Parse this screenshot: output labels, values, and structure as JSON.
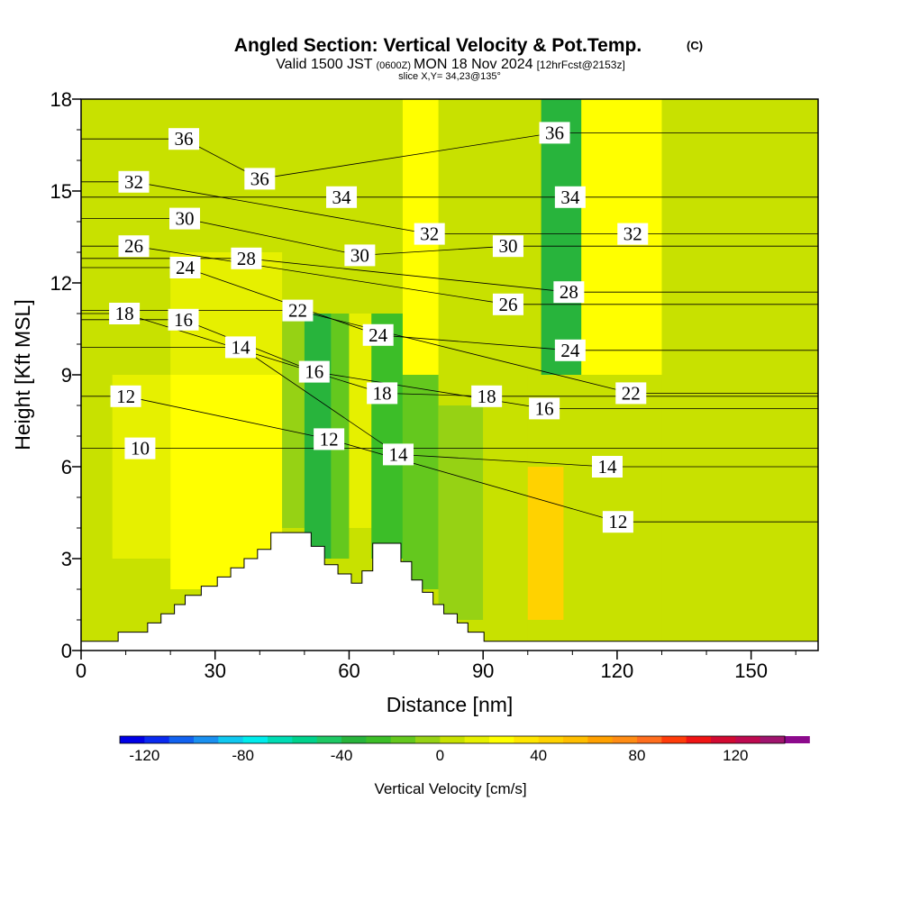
{
  "title": {
    "main": "Angled Section: Vertical Velocity & Pot.Temp.",
    "main_mark": "(C)",
    "valid_a": "Valid 1500 JST",
    "valid_b": "(0600Z)",
    "valid_c": "MON 18 Nov 2024",
    "valid_d": "[12hrFcst@2153z]",
    "slice": "slice X,Y= 34,23@135°"
  },
  "chart_data": {
    "type": "heatmap",
    "xlabel": "Distance [nm]",
    "ylabel": "Height [Kft MSL]",
    "xlim": [
      0,
      165
    ],
    "ylim": [
      0,
      18
    ],
    "xticks": [
      "0",
      "30",
      "60",
      "90",
      "120",
      "150"
    ],
    "yticks": [
      "0",
      "3",
      "6",
      "9",
      "12",
      "15",
      "18"
    ],
    "colorbar": {
      "label": "Vertical Velocity [cm/s]",
      "ticks": [
        "-120",
        "-80",
        "-40",
        "0",
        "40",
        "80",
        "120"
      ],
      "range": [
        -130,
        140
      ],
      "step": 10,
      "colors": [
        "#0000e6",
        "#0a2af0",
        "#1262f0",
        "#1a90f0",
        "#10c8f0",
        "#00ecec",
        "#00dcb4",
        "#00d28c",
        "#1ec864",
        "#28b43c",
        "#3cbe28",
        "#64c81e",
        "#96d214",
        "#c8e100",
        "#e6f000",
        "#ffff00",
        "#ffe600",
        "#ffd200",
        "#ffbe00",
        "#ffa000",
        "#ff8c14",
        "#ff6e1e",
        "#ff3c0a",
        "#f01414",
        "#d20a32",
        "#be0a50",
        "#a0146e",
        "#8c0a8c"
      ]
    },
    "terrain_profile": [
      {
        "x": 0,
        "h": 0.3
      },
      {
        "x": 8.3,
        "h": 0.3
      },
      {
        "x": 8.3,
        "h": 0.6
      },
      {
        "x": 14.9,
        "h": 0.6
      },
      {
        "x": 14.9,
        "h": 0.9
      },
      {
        "x": 17.9,
        "h": 0.9
      },
      {
        "x": 17.9,
        "h": 1.2
      },
      {
        "x": 20.9,
        "h": 1.2
      },
      {
        "x": 20.9,
        "h": 1.5
      },
      {
        "x": 23.3,
        "h": 1.5
      },
      {
        "x": 23.3,
        "h": 1.8
      },
      {
        "x": 26.9,
        "h": 1.8
      },
      {
        "x": 26.9,
        "h": 2.1
      },
      {
        "x": 30.5,
        "h": 2.1
      },
      {
        "x": 30.5,
        "h": 2.4
      },
      {
        "x": 33.5,
        "h": 2.4
      },
      {
        "x": 33.5,
        "h": 2.7
      },
      {
        "x": 36.5,
        "h": 2.7
      },
      {
        "x": 36.5,
        "h": 3.0
      },
      {
        "x": 39.5,
        "h": 3.0
      },
      {
        "x": 39.5,
        "h": 3.3
      },
      {
        "x": 42.5,
        "h": 3.3
      },
      {
        "x": 42.5,
        "h": 3.85
      },
      {
        "x": 51.5,
        "h": 3.85
      },
      {
        "x": 51.5,
        "h": 3.4
      },
      {
        "x": 54.5,
        "h": 3.4
      },
      {
        "x": 54.5,
        "h": 2.8
      },
      {
        "x": 57.5,
        "h": 2.8
      },
      {
        "x": 57.5,
        "h": 2.5
      },
      {
        "x": 60.5,
        "h": 2.5
      },
      {
        "x": 60.5,
        "h": 2.2
      },
      {
        "x": 62.9,
        "h": 2.2
      },
      {
        "x": 62.9,
        "h": 2.6
      },
      {
        "x": 65.3,
        "h": 2.6
      },
      {
        "x": 65.3,
        "h": 3.5
      },
      {
        "x": 71.6,
        "h": 3.5
      },
      {
        "x": 71.6,
        "h": 2.9
      },
      {
        "x": 74.0,
        "h": 2.9
      },
      {
        "x": 74.0,
        "h": 2.3
      },
      {
        "x": 76.4,
        "h": 2.3
      },
      {
        "x": 76.4,
        "h": 1.9
      },
      {
        "x": 78.8,
        "h": 1.9
      },
      {
        "x": 78.8,
        "h": 1.5
      },
      {
        "x": 81.2,
        "h": 1.5
      },
      {
        "x": 81.2,
        "h": 1.2
      },
      {
        "x": 84.2,
        "h": 1.2
      },
      {
        "x": 84.2,
        "h": 0.9
      },
      {
        "x": 86.6,
        "h": 0.9
      },
      {
        "x": 86.6,
        "h": 0.6
      },
      {
        "x": 90.2,
        "h": 0.6
      },
      {
        "x": 90.2,
        "h": 0.3
      },
      {
        "x": 165,
        "h": 0.3
      }
    ],
    "velocity_cells": [
      {
        "x0": 0,
        "x1": 7,
        "y0": 0,
        "y1": 18,
        "v": 5
      },
      {
        "x0": 7,
        "x1": 20,
        "y0": 3,
        "y1": 9,
        "v": 15
      },
      {
        "x0": 20,
        "x1": 45,
        "y0": 2,
        "y1": 9,
        "v": 25
      },
      {
        "x0": 20,
        "x1": 45,
        "y0": 9,
        "y1": 13,
        "v": 10
      },
      {
        "x0": 45,
        "x1": 50,
        "y0": 4,
        "y1": 11,
        "v": -5
      },
      {
        "x0": 50,
        "x1": 56,
        "y0": 3,
        "y1": 11,
        "v": -35
      },
      {
        "x0": 56,
        "x1": 60,
        "y0": 3,
        "y1": 11,
        "v": -15
      },
      {
        "x0": 60,
        "x1": 65,
        "y0": 4,
        "y1": 11,
        "v": 10
      },
      {
        "x0": 65,
        "x1": 72,
        "y0": 3,
        "y1": 11,
        "v": -30
      },
      {
        "x0": 72,
        "x1": 80,
        "y0": 2,
        "y1": 9,
        "v": -20
      },
      {
        "x0": 72,
        "x1": 80,
        "y0": 9,
        "y1": 18,
        "v": 25
      },
      {
        "x0": 80,
        "x1": 90,
        "y0": 1,
        "y1": 8,
        "v": -5
      },
      {
        "x0": 90,
        "x1": 100,
        "y0": 0,
        "y1": 9,
        "v": 5
      },
      {
        "x0": 100,
        "x1": 108,
        "y0": 1,
        "y1": 6,
        "v": 40
      },
      {
        "x0": 103,
        "x1": 112,
        "y0": 9,
        "y1": 18,
        "v": -40
      },
      {
        "x0": 112,
        "x1": 130,
        "y0": 0,
        "y1": 9,
        "v": 5
      },
      {
        "x0": 112,
        "x1": 130,
        "y0": 9,
        "y1": 18,
        "v": 20
      },
      {
        "x0": 130,
        "x1": 165,
        "y0": 0,
        "y1": 18,
        "v": 0
      }
    ],
    "isentrope_labels": [
      {
        "text": "36",
        "x": 23,
        "y": 16.7
      },
      {
        "text": "32",
        "x": 11.8,
        "y": 15.3
      },
      {
        "text": "36",
        "x": 40,
        "y": 15.4
      },
      {
        "text": "34",
        "x": 58.3,
        "y": 14.8
      },
      {
        "text": "36",
        "x": 106,
        "y": 16.9
      },
      {
        "text": "34",
        "x": 109.5,
        "y": 14.8
      },
      {
        "text": "30",
        "x": 23.2,
        "y": 14.1
      },
      {
        "text": "32",
        "x": 78,
        "y": 13.6
      },
      {
        "text": "32",
        "x": 123.5,
        "y": 13.6
      },
      {
        "text": "26",
        "x": 11.8,
        "y": 13.2
      },
      {
        "text": "30",
        "x": 95.6,
        "y": 13.2
      },
      {
        "text": "30",
        "x": 62.4,
        "y": 12.9
      },
      {
        "text": "24",
        "x": 23.3,
        "y": 12.5
      },
      {
        "text": "28",
        "x": 37,
        "y": 12.8
      },
      {
        "text": "28",
        "x": 109.2,
        "y": 11.7
      },
      {
        "text": "26",
        "x": 95.6,
        "y": 11.3
      },
      {
        "text": "22",
        "x": 48.5,
        "y": 11.1
      },
      {
        "text": "18",
        "x": 9.7,
        "y": 11.0
      },
      {
        "text": "16",
        "x": 22.9,
        "y": 10.8
      },
      {
        "text": "24",
        "x": 66.5,
        "y": 10.3
      },
      {
        "text": "24",
        "x": 109.5,
        "y": 9.8
      },
      {
        "text": "14",
        "x": 35.7,
        "y": 9.9
      },
      {
        "text": "16",
        "x": 52.2,
        "y": 9.1
      },
      {
        "text": "18",
        "x": 67.4,
        "y": 8.4
      },
      {
        "text": "22",
        "x": 123.1,
        "y": 8.4
      },
      {
        "text": "12",
        "x": 10,
        "y": 8.3
      },
      {
        "text": "18",
        "x": 90.8,
        "y": 8.3
      },
      {
        "text": "16",
        "x": 103.7,
        "y": 7.9
      },
      {
        "text": "12",
        "x": 55.5,
        "y": 6.9
      },
      {
        "text": "10",
        "x": 13.2,
        "y": 6.6
      },
      {
        "text": "14",
        "x": 71,
        "y": 6.4
      },
      {
        "text": "14",
        "x": 117.8,
        "y": 6.0
      },
      {
        "text": "12",
        "x": 120.2,
        "y": 4.2
      }
    ]
  }
}
